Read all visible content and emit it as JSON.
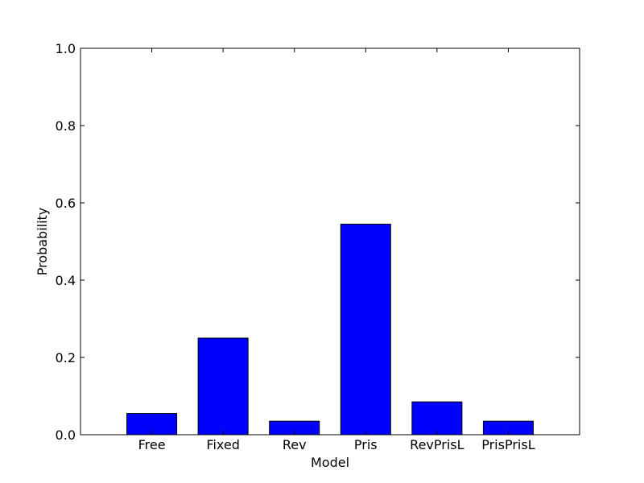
{
  "chart_data": {
    "type": "bar",
    "title": "",
    "xlabel": "Model",
    "ylabel": "Probability",
    "categories": [
      "Free",
      "Fixed",
      "Rev",
      "Pris",
      "RevPrisL",
      "PrisPrisL"
    ],
    "values": [
      0.055,
      0.25,
      0.035,
      0.545,
      0.085,
      0.035
    ],
    "ylim": [
      0,
      1.0
    ],
    "yticks": [
      "0.0",
      "0.2",
      "0.4",
      "0.6",
      "0.8",
      "1.0"
    ],
    "grid": false,
    "bar_color": "#0000ff",
    "edge_color": "#000000"
  }
}
